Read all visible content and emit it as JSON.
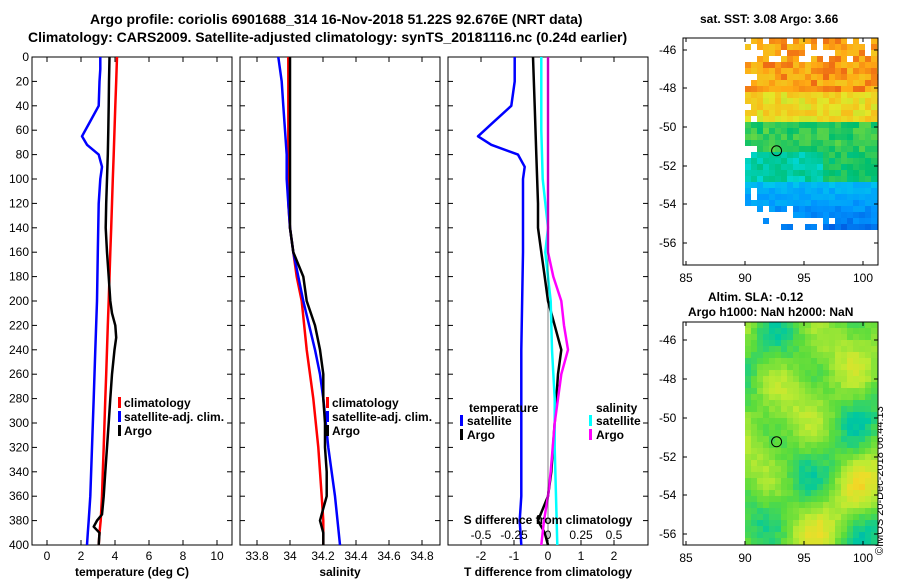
{
  "titles": {
    "line1": "Argo profile: coriolis 6901688_314 16-Nov-2018 51.22S 92.676E (NRT data)",
    "line2": "Climatology: CARS2009. Satellite-adjusted climatology: synTS_20181116.nc (0.24d earlier)",
    "map1": "sat. SST: 3.08 Argo: 3.66",
    "map2a": "Altim. SLA: -0.12",
    "map2b": "Argo h1000: NaN h2000: NaN",
    "stamp": "©IMOS 20-Dec-2018 06:44:13"
  },
  "colors": {
    "climatology": "#ff0000",
    "satellite": "#0000ff",
    "argo": "#000000",
    "salinity_sat": "#00ffff",
    "salinity_argo": "#ff00ff"
  },
  "chart_data": [
    {
      "type": "line",
      "id": "temperature",
      "xlabel": "temperature (deg C)",
      "ylabel": "depth",
      "xlim": [
        -1,
        11
      ],
      "ylim": [
        400,
        0
      ],
      "xticks": [
        "0",
        "2",
        "4",
        "6",
        "8",
        "10"
      ],
      "yticks": [
        "0",
        "20",
        "40",
        "60",
        "80",
        "100",
        "120",
        "140",
        "160",
        "180",
        "200",
        "220",
        "240",
        "260",
        "280",
        "300",
        "320",
        "340",
        "360",
        "380",
        "400"
      ],
      "legend": [
        "climatology",
        "satellite-adj. clim.",
        "Argo"
      ],
      "series": [
        {
          "name": "climatology",
          "depth": [
            0,
            20,
            40,
            60,
            80,
            100,
            120,
            140,
            160,
            180,
            200,
            220,
            240,
            260,
            280,
            300,
            320,
            340,
            360,
            380,
            390,
            400
          ],
          "values": [
            4.1,
            4.05,
            4.0,
            3.95,
            3.9,
            3.85,
            3.8,
            3.75,
            3.7,
            3.65,
            3.6,
            3.55,
            3.5,
            3.45,
            3.4,
            3.35,
            3.3,
            3.25,
            3.2,
            3.12,
            3.05,
            3.0
          ]
        },
        {
          "name": "satellite-adj. clim.",
          "depth": [
            0,
            10,
            20,
            40,
            55,
            65,
            72,
            80,
            90,
            100,
            120,
            160,
            200,
            240,
            280,
            320,
            360,
            380,
            390,
            400
          ],
          "values": [
            3.1,
            3.1,
            3.05,
            3.0,
            2.4,
            2.0,
            2.3,
            3.0,
            3.2,
            3.1,
            3.0,
            2.95,
            2.9,
            2.8,
            2.7,
            2.6,
            2.5,
            2.4,
            2.35,
            2.3
          ]
        },
        {
          "name": "Argo",
          "depth": [
            0,
            20,
            40,
            60,
            80,
            100,
            120,
            140,
            160,
            180,
            200,
            210,
            220,
            230,
            240,
            260,
            280,
            300,
            320,
            340,
            360,
            375,
            380,
            385,
            390,
            400
          ],
          "values": [
            3.65,
            3.62,
            3.6,
            3.58,
            3.55,
            3.5,
            3.45,
            3.42,
            3.5,
            3.6,
            3.7,
            3.8,
            4.0,
            4.05,
            3.95,
            3.8,
            3.7,
            3.6,
            3.5,
            3.4,
            3.3,
            3.2,
            2.9,
            2.7,
            3.05,
            3.0
          ]
        }
      ]
    },
    {
      "type": "line",
      "id": "salinity",
      "xlabel": "salinity",
      "ylabel": "depth",
      "xlim": [
        33.7,
        34.9
      ],
      "ylim": [
        400,
        0
      ],
      "xticks": [
        "33.8",
        "34",
        "34.2",
        "34.4",
        "34.6",
        "34.8"
      ],
      "legend": [
        "climatology",
        "satellite-adj. clim.",
        "Argo"
      ],
      "series": [
        {
          "name": "climatology",
          "depth": [
            0,
            60,
            120,
            140,
            160,
            180,
            200,
            240,
            280,
            320,
            360,
            380,
            400
          ],
          "values": [
            33.99,
            33.99,
            33.99,
            34.0,
            34.02,
            34.04,
            34.07,
            34.1,
            34.14,
            34.17,
            34.19,
            34.2,
            34.2
          ]
        },
        {
          "name": "satellite-adj. clim.",
          "depth": [
            0,
            20,
            40,
            60,
            80,
            100,
            120,
            140,
            160,
            180,
            200,
            240,
            260,
            280,
            320,
            360,
            400
          ],
          "values": [
            33.93,
            33.95,
            33.96,
            33.97,
            33.98,
            33.98,
            33.99,
            34.0,
            34.02,
            34.05,
            34.08,
            34.15,
            34.18,
            34.2,
            34.23,
            34.27,
            34.3
          ]
        },
        {
          "name": "Argo",
          "depth": [
            0,
            40,
            80,
            120,
            140,
            160,
            180,
            200,
            220,
            240,
            260,
            280,
            300,
            320,
            340,
            360,
            370,
            380,
            390,
            400
          ],
          "values": [
            34.0,
            34.0,
            34.0,
            34.0,
            34.0,
            34.02,
            34.08,
            34.1,
            34.15,
            34.18,
            34.2,
            34.2,
            34.21,
            34.21,
            34.22,
            34.22,
            34.2,
            34.18,
            34.2,
            34.2
          ]
        }
      ]
    },
    {
      "type": "line",
      "id": "difference",
      "xlabel": "T difference from climatology",
      "x2label": "S difference from climatology",
      "xlim": [
        -3,
        3
      ],
      "ylim": [
        400,
        0
      ],
      "xticks": [
        "-2",
        "-1",
        "0",
        "1",
        "2"
      ],
      "x2ticks": [
        "-0.5",
        "-0.25",
        "0",
        "0.25",
        "0.5"
      ],
      "legend_temperature": {
        "title": "temperature",
        "items": [
          "satellite",
          "Argo"
        ]
      },
      "legend_salinity": {
        "title": "salinity",
        "items": [
          "satellite",
          "Argo"
        ]
      },
      "series": [
        {
          "name": "T satellite",
          "depth": [
            0,
            20,
            40,
            55,
            65,
            72,
            80,
            90,
            100,
            160,
            240,
            320,
            360,
            380,
            400
          ],
          "values": [
            -1.0,
            -1.0,
            -1.1,
            -1.7,
            -2.1,
            -1.7,
            -0.9,
            -0.7,
            -0.75,
            -0.75,
            -0.8,
            -0.8,
            -0.8,
            -0.85,
            -0.8
          ]
        },
        {
          "name": "T Argo",
          "depth": [
            0,
            40,
            80,
            120,
            140,
            160,
            180,
            200,
            220,
            240,
            260,
            300,
            340,
            360,
            380,
            390,
            400
          ],
          "values": [
            -0.45,
            -0.4,
            -0.35,
            -0.3,
            -0.3,
            -0.2,
            -0.1,
            0.0,
            0.2,
            0.4,
            0.3,
            0.2,
            0.1,
            0.0,
            -0.3,
            -0.1,
            0.0
          ]
        },
        {
          "name": "S satellite",
          "depth": [
            0,
            20,
            60,
            100,
            140,
            160,
            180,
            200,
            240,
            280,
            320,
            360,
            400
          ],
          "values": [
            -0.05,
            -0.05,
            -0.05,
            -0.04,
            0.0,
            -0.02,
            0.0,
            0.02,
            0.03,
            0.05,
            0.05,
            0.06,
            0.07
          ]
        },
        {
          "name": "S Argo",
          "depth": [
            0,
            40,
            100,
            140,
            160,
            180,
            200,
            220,
            240,
            260,
            300,
            340,
            360,
            380,
            400
          ],
          "values": [
            0.0,
            0.0,
            0.0,
            0.0,
            0.0,
            0.04,
            0.1,
            0.12,
            0.15,
            0.1,
            0.05,
            0.02,
            0.0,
            -0.03,
            -0.05
          ]
        }
      ]
    },
    {
      "type": "heatmap",
      "id": "sst-map",
      "title": "sat. SST: 3.08 Argo: 3.66",
      "xticks": [
        "85",
        "90",
        "95",
        "100"
      ],
      "yticks": [
        "-46",
        "-48",
        "-50",
        "-52",
        "-54",
        "-56"
      ],
      "argo_position": {
        "lon": 92.676,
        "lat": -51.22
      }
    },
    {
      "type": "heatmap",
      "id": "sla-map",
      "title": "Altim. SLA: -0.12",
      "xticks": [
        "85",
        "90",
        "95",
        "100"
      ],
      "yticks": [
        "-46",
        "-48",
        "-50",
        "-52",
        "-54",
        "-56"
      ],
      "argo_position": {
        "lon": 92.676,
        "lat": -51.22
      }
    }
  ]
}
